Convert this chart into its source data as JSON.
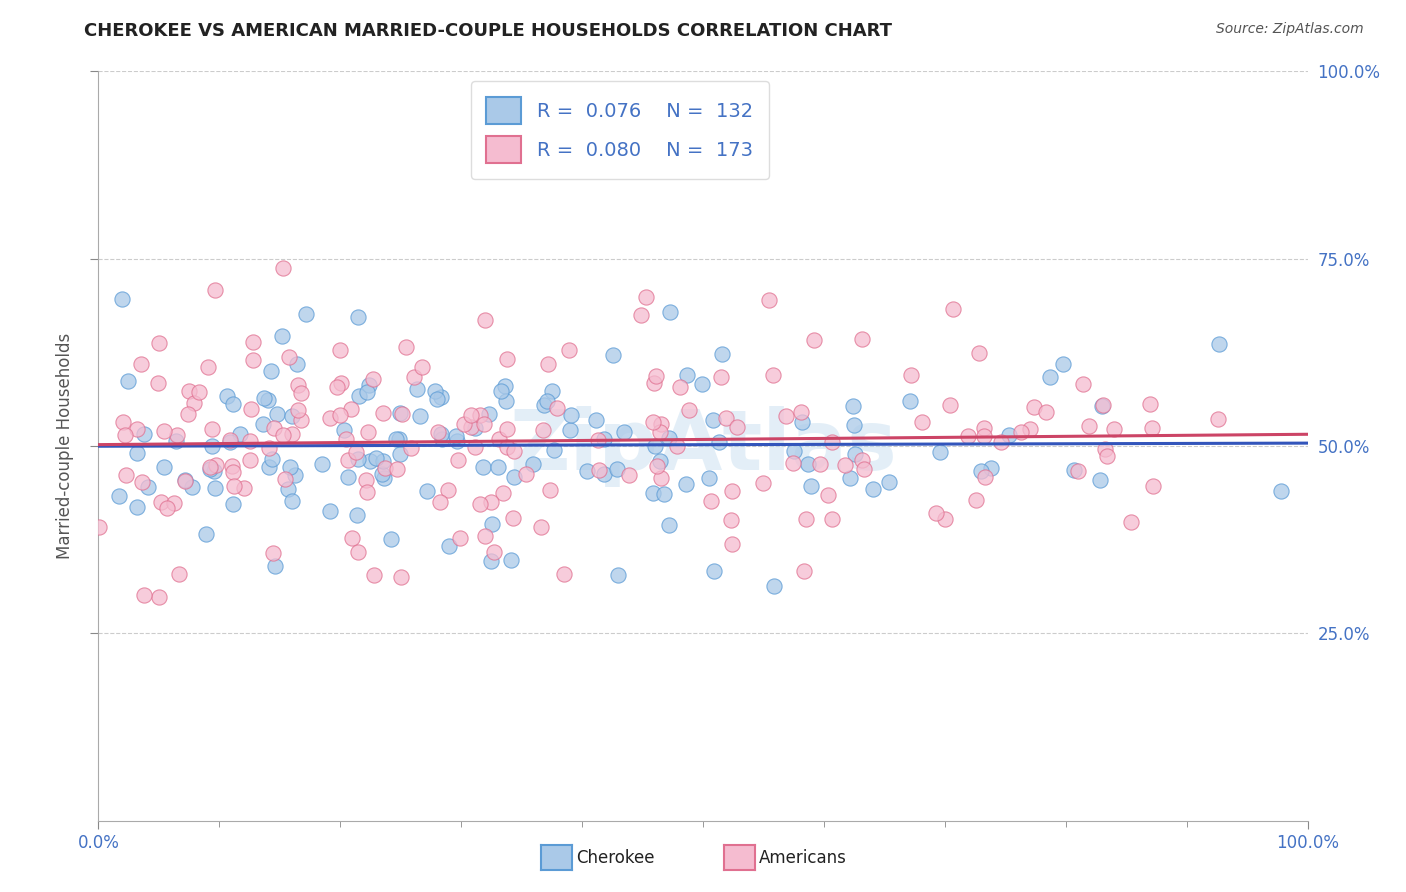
{
  "title": "CHEROKEE VS AMERICAN MARRIED-COUPLE HOUSEHOLDS CORRELATION CHART",
  "source": "Source: ZipAtlas.com",
  "ylabel": "Married-couple Households",
  "xlim": [
    0.0,
    1.0
  ],
  "ylim": [
    0.0,
    1.0
  ],
  "xtick_labels": [
    "0.0%",
    "100.0%"
  ],
  "ytick_labels": [
    "25.0%",
    "50.0%",
    "75.0%",
    "100.0%"
  ],
  "ytick_positions": [
    0.25,
    0.5,
    0.75,
    1.0
  ],
  "cherokee_color": "#aac9e8",
  "cherokee_edge_color": "#5b9bd5",
  "american_color": "#f5bcd0",
  "american_edge_color": "#e07090",
  "cherokee_line_color": "#3355bb",
  "american_line_color": "#cc4466",
  "cherokee_R": 0.076,
  "cherokee_N": 132,
  "american_R": 0.08,
  "american_N": 173,
  "watermark": "ZipAtlas",
  "background_color": "#ffffff",
  "grid_color": "#cccccc",
  "title_fontsize": 13,
  "source_fontsize": 10,
  "tick_fontsize": 12,
  "ylabel_fontsize": 12
}
